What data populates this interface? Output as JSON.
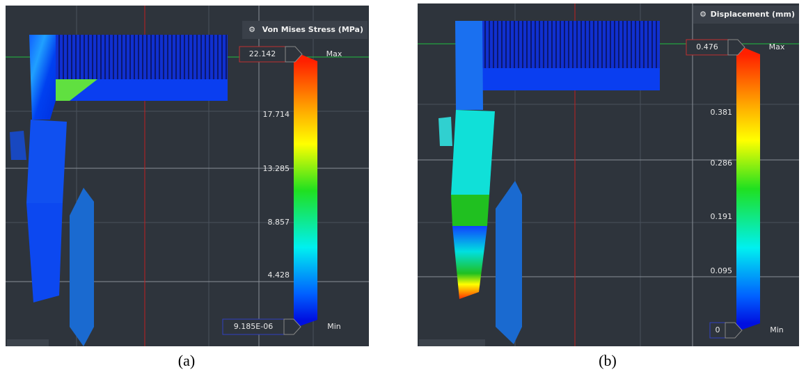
{
  "panels": [
    {
      "title": "Von Mises Stress (MPa)",
      "max_value": "22.142",
      "max_label": "Max",
      "scale_labels": [
        "17.714",
        "13.285",
        "8.857",
        "4.428"
      ],
      "min_value": "9.185E-06",
      "min_label": "Min",
      "caption": "(a)"
    },
    {
      "title": "Displacement (mm)",
      "max_value": "0.476",
      "max_label": "Max",
      "scale_labels": [
        "0.381",
        "0.286",
        "0.191",
        "0.095"
      ],
      "min_value": "0",
      "min_label": "Min",
      "caption": "(b)"
    }
  ]
}
